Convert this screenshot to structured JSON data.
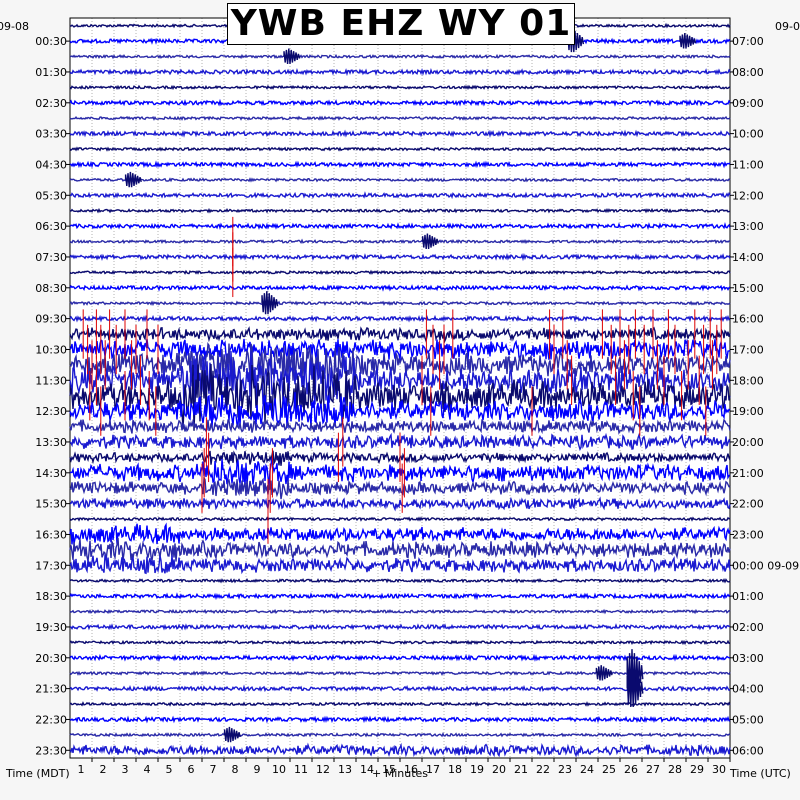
{
  "chart_data": {
    "type": "helicorder",
    "title": "YWB EHZ WY 01",
    "xlabel": "+ Minutes",
    "left_axis_label": "Time (MDT)",
    "right_axis_label": "Time (UTC)",
    "xlim": [
      0,
      30
    ],
    "x_ticks": [
      "1",
      "2",
      "3",
      "4",
      "5",
      "6",
      "7",
      "8",
      "9",
      "10",
      "11",
      "12",
      "13",
      "14",
      "15",
      "16",
      "17",
      "18",
      "19",
      "20",
      "21",
      "22",
      "23",
      "24",
      "25",
      "26",
      "27",
      "28",
      "29",
      "30"
    ],
    "date_left_top": "09-08",
    "date_right_top": "09-0",
    "left_ticks": [
      "00:30",
      "01:30",
      "02:30",
      "03:30",
      "04:30",
      "05:30",
      "06:30",
      "07:30",
      "08:30",
      "09:30",
      "10:30",
      "11:30",
      "12:30",
      "13:30",
      "14:30",
      "15:30",
      "16:30",
      "17:30",
      "18:30",
      "19:30",
      "20:30",
      "21:30",
      "22:30",
      "23:30"
    ],
    "right_ticks": [
      "07:00",
      "08:00",
      "09:00",
      "10:00",
      "11:00",
      "12:00",
      "13:00",
      "14:00",
      "15:00",
      "16:00",
      "17:00",
      "18:00",
      "19:00",
      "20:00",
      "21:00",
      "22:00",
      "23:00",
      "00:00 09-09",
      "01:00",
      "02:00",
      "03:00",
      "04:00",
      "05:00",
      "06:00"
    ],
    "trace_colors": [
      "#0a0a6e",
      "#0000ff",
      "#2a2aa8",
      "#1a1ad0"
    ],
    "clip_color": "#dd0000",
    "grid": true,
    "rows": 48,
    "row_minutes": 30,
    "events": [
      {
        "row": 1,
        "minute": 22.9,
        "amplitude": 3
      },
      {
        "row": 1,
        "minute": 28.0,
        "amplitude": 2
      },
      {
        "row": 2,
        "minute": 10.0,
        "amplitude": 2
      },
      {
        "row": 10,
        "minute": 2.8,
        "amplitude": 2
      },
      {
        "row": 14,
        "minute": 16.3,
        "amplitude": 2
      },
      {
        "row": 18,
        "minute": 9.0,
        "amplitude": 3
      },
      {
        "row": 42,
        "minute": 25.6,
        "amplitude": 6
      },
      {
        "row": 43,
        "minute": 25.6,
        "amplitude": 5
      },
      {
        "row": 42,
        "minute": 24.2,
        "amplitude": 2
      },
      {
        "row": 46,
        "minute": 7.3,
        "amplitude": 2
      }
    ],
    "noisy_rows": [
      {
        "row": 20,
        "level": 3
      },
      {
        "row": 21,
        "level": 5
      },
      {
        "row": 22,
        "level": 6
      },
      {
        "row": 23,
        "level": 7
      },
      {
        "row": 24,
        "level": 8
      },
      {
        "row": 25,
        "level": 5
      },
      {
        "row": 26,
        "level": 3
      },
      {
        "row": 27,
        "level": 3
      },
      {
        "row": 28,
        "level": 2
      },
      {
        "row": 29,
        "level": 4
      },
      {
        "row": 30,
        "level": 3
      },
      {
        "row": 31,
        "level": 2
      },
      {
        "row": 33,
        "level": 3
      },
      {
        "row": 34,
        "level": 4
      },
      {
        "row": 35,
        "level": 3
      },
      {
        "row": 47,
        "level": 2
      }
    ]
  }
}
